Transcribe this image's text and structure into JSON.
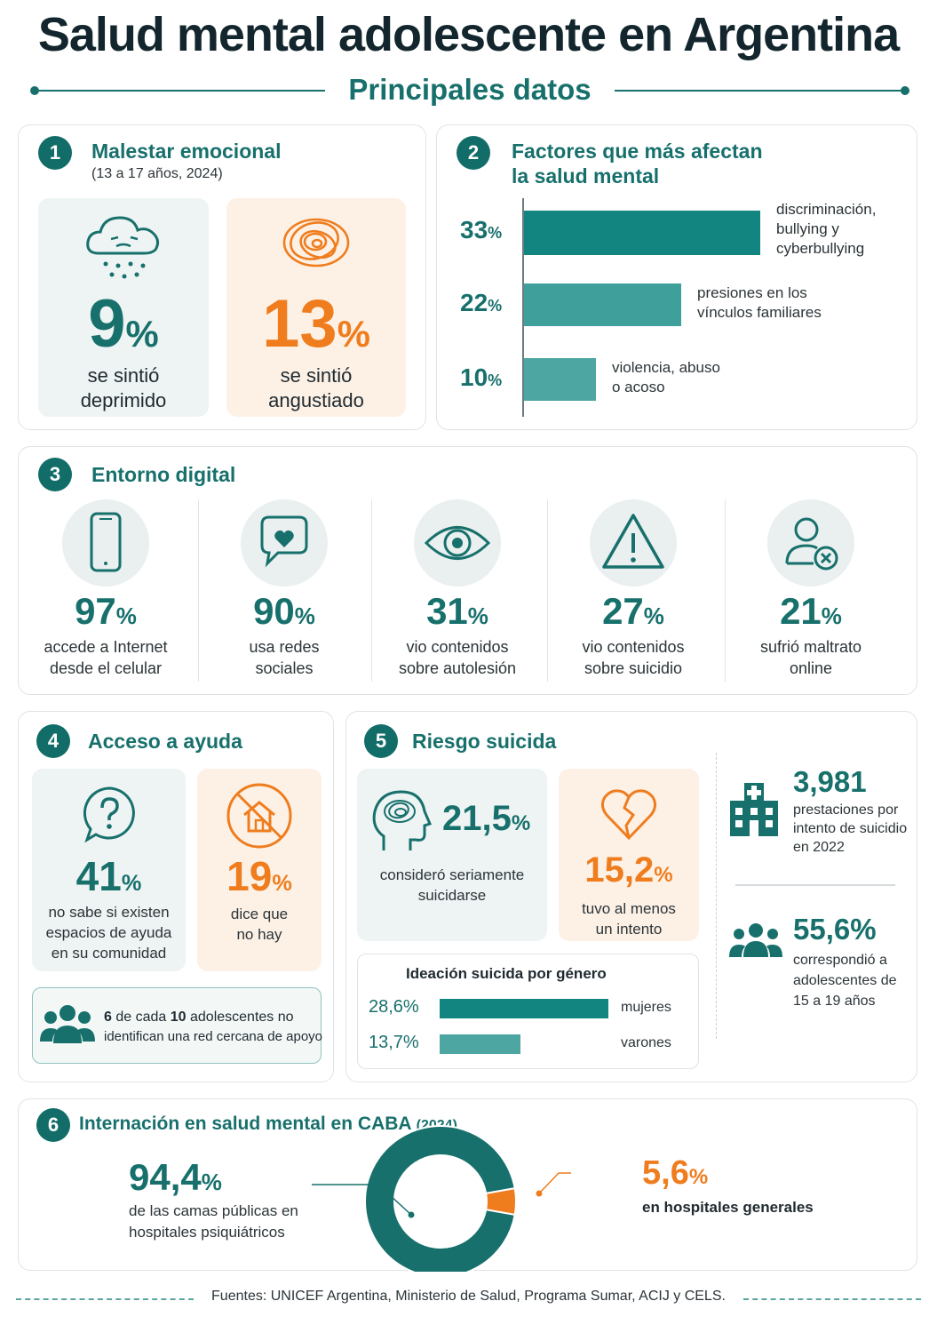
{
  "header": {
    "title": "Salud mental adolescente en Argentina",
    "subtitle": "Principales datos"
  },
  "s1": {
    "num": "1",
    "title": "Malestar emocional",
    "sub": "(13 a 17 años, 2024)",
    "a_value": "9",
    "a_label1": "se sintió",
    "a_label2": "deprimido",
    "b_value": "13",
    "b_label1": "se sintió",
    "b_label2": "angustiado",
    "pct": "%"
  },
  "s2": {
    "num": "2",
    "title1": "Factores que más afectan",
    "title2": "la salud mental",
    "bars": [
      {
        "value": 33,
        "text": "33",
        "label1": "discriminación,",
        "label2": "bullying y",
        "label3": "cyberbullying"
      },
      {
        "value": 22,
        "text": "22",
        "label1": "presiones en los",
        "label2": "vínculos familiares"
      },
      {
        "value": 10,
        "text": "10",
        "label1": "violencia, abuso",
        "label2": "o acoso"
      }
    ]
  },
  "s3": {
    "num": "3",
    "title": "Entorno digital",
    "items": [
      {
        "value": "97",
        "l1": "accede a Internet",
        "l2": "desde el celular",
        "icon": "phone-icon"
      },
      {
        "value": "90",
        "l1": "usa redes",
        "l2": "sociales",
        "icon": "chat-heart-icon"
      },
      {
        "value": "31",
        "l1": "vio contenidos",
        "l2": "sobre autolesión",
        "icon": "eye-icon"
      },
      {
        "value": "27",
        "l1": "vio contenidos",
        "l2": "sobre suicidio",
        "icon": "warning-icon"
      },
      {
        "value": "21",
        "l1": "sufrió maltrato",
        "l2": "online",
        "icon": "user-x-icon"
      }
    ]
  },
  "s4": {
    "num": "4",
    "title": "Acceso a ayuda",
    "a_value": "41",
    "a_l1": "no sabe si existen",
    "a_l2": "espacios de ayuda",
    "a_l3": "en su comunidad",
    "b_value": "19",
    "b_l1": "dice que",
    "b_l2": "no hay",
    "note_strong1": "6",
    "note_mid": "de cada",
    "note_strong2": "10",
    "note_rest1": "adolescentes no",
    "note_rest2": "identifican una red cercana de apoyo"
  },
  "s5": {
    "num": "5",
    "title": "Riesgo suicida",
    "a_value": "21,5",
    "a_l1": "consideró seriamente",
    "a_l2": "suicidarse",
    "b_value": "15,2",
    "b_l1": "tuvo al menos",
    "b_l2": "un intento",
    "gender_title": "Ideación suicida por género",
    "gender": [
      {
        "text": "28,6%",
        "value": 28.6,
        "label": "mujeres"
      },
      {
        "text": "13,7%",
        "value": 13.7,
        "label": "varones"
      }
    ],
    "stat1_value": "3,981",
    "stat1_l1": "prestaciones por",
    "stat1_l2": "intento de suicidio",
    "stat1_l3": "en 2022",
    "stat2_value": "55,6%",
    "stat2_l1": "correspondió a",
    "stat2_l2": "adolescentes de",
    "stat2_l3": "15 a 19 años"
  },
  "s6": {
    "num": "6",
    "title": "Internación en salud mental en CABA",
    "title_year": "(2024)",
    "left_value": "94,4",
    "left_l1": "de las camas públicas en",
    "left_l2": "hospitales psiquiátricos",
    "right_value": "5,6",
    "right_l1": "en hospitales generales"
  },
  "chart_data": [
    {
      "type": "bar",
      "categories": [
        "discriminación, bullying y cyberbullying",
        "presiones en los vínculos familiares",
        "violencia, abuso o acoso"
      ],
      "values": [
        33,
        22,
        10
      ],
      "title": "Factores que más afectan la salud mental"
    },
    {
      "type": "bar",
      "categories": [
        "mujeres",
        "varones"
      ],
      "values": [
        28.6,
        13.7
      ],
      "title": "Ideación suicida por género"
    },
    {
      "type": "pie",
      "categories": [
        "de las camas públicas en hospitales psiquiátricos",
        "en hospitales generales"
      ],
      "values": [
        94.4,
        5.6
      ],
      "title": "Internación en salud mental en CABA (2024)"
    }
  ],
  "colors": {
    "teal": "#17706c",
    "orange": "#ef7d1e",
    "bar_dark": "#128581",
    "bar_light": "#4da6a1"
  },
  "footer": "Fuentes: UNICEF Argentina, Ministerio de Salud, Programa Sumar, ACIJ y CELS."
}
